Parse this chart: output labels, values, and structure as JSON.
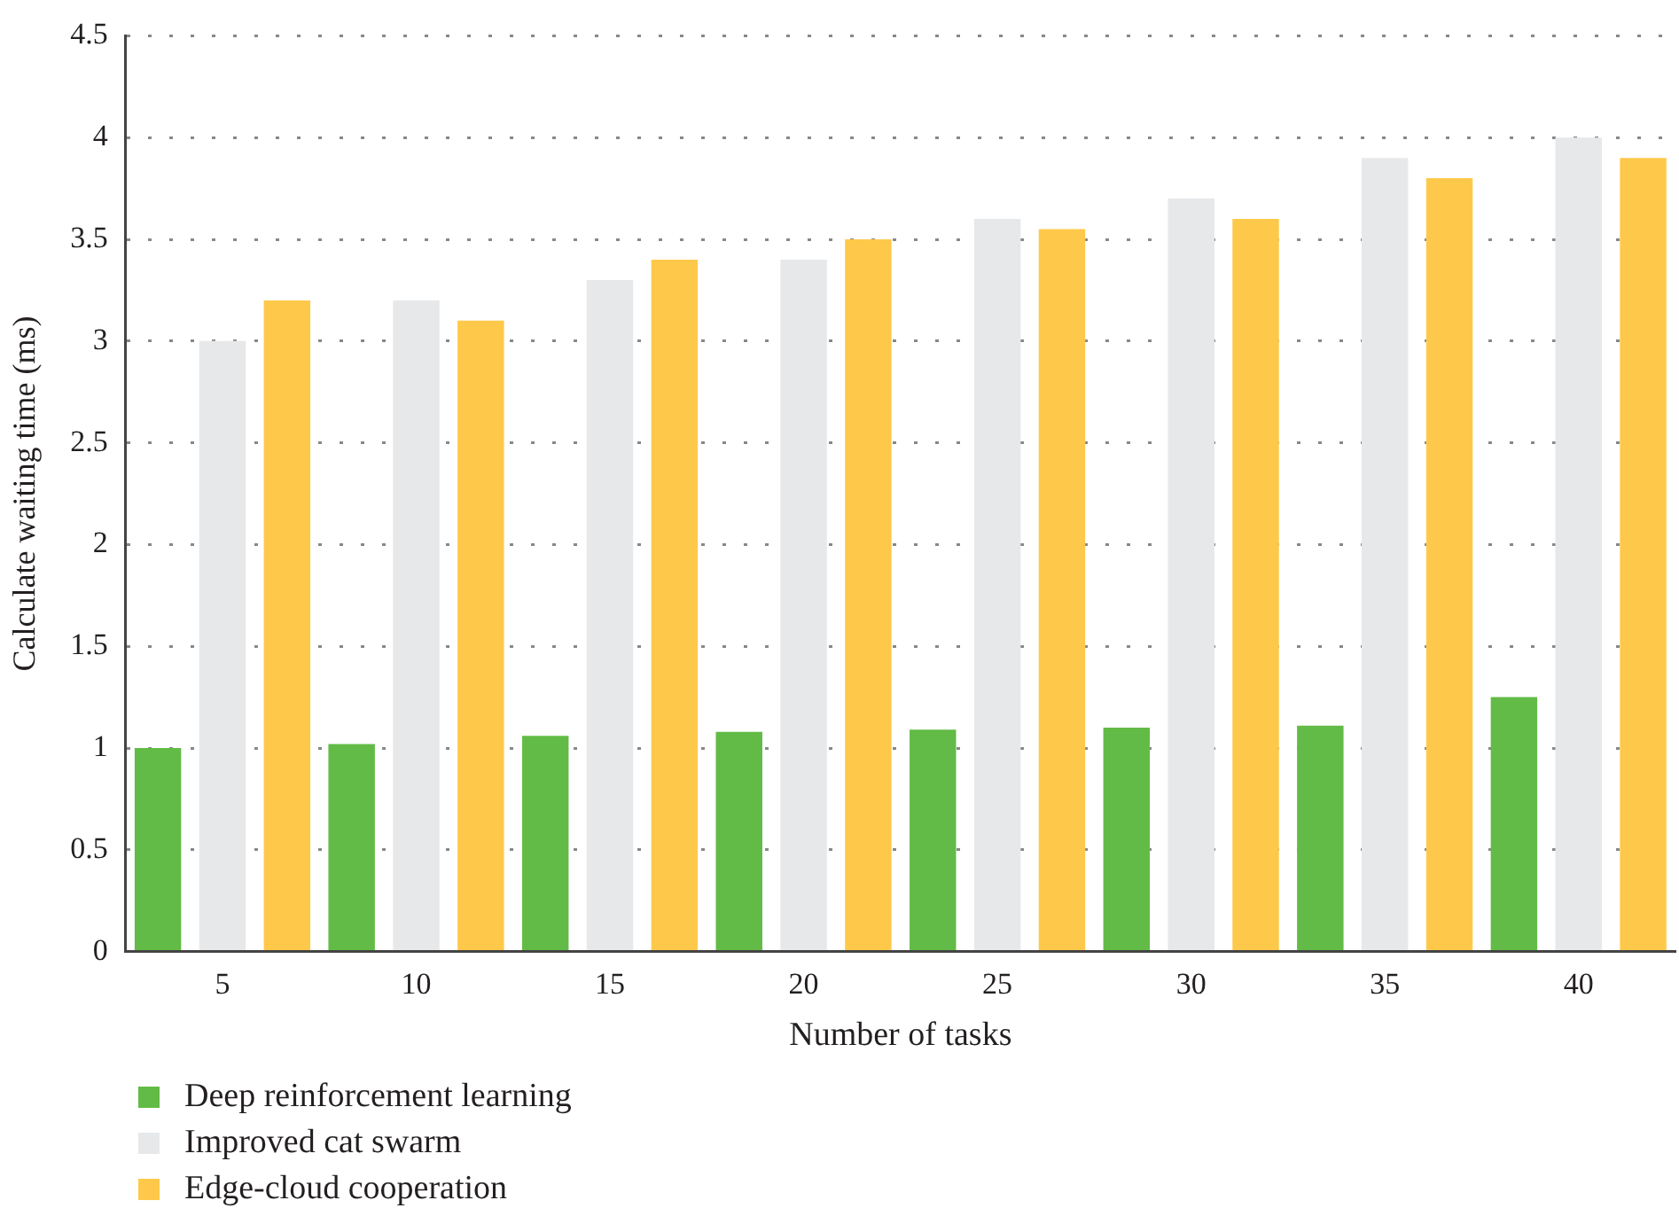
{
  "chart_data": {
    "type": "bar",
    "xlabel": "Number of tasks",
    "ylabel": "Calculate waiting time (ms)",
    "categories": [
      "5",
      "10",
      "15",
      "20",
      "25",
      "30",
      "35",
      "40"
    ],
    "series": [
      {
        "name": "Deep reinforcement learning",
        "color": "#62bb46",
        "values": [
          1.0,
          1.02,
          1.06,
          1.08,
          1.09,
          1.1,
          1.11,
          1.25
        ]
      },
      {
        "name": "Improved cat swarm",
        "color": "#e6e8ea",
        "values": [
          3.0,
          3.2,
          3.3,
          3.4,
          3.6,
          3.7,
          3.9,
          4.0
        ]
      },
      {
        "name": "Edge-cloud cooperation",
        "color": "#fec94a",
        "values": [
          3.2,
          3.1,
          3.4,
          3.5,
          3.55,
          3.6,
          3.8,
          3.9
        ]
      }
    ],
    "ylim": [
      0,
      4.5
    ],
    "yticks": [
      0,
      0.5,
      1,
      1.5,
      2,
      2.5,
      3,
      3.5,
      4,
      4.5
    ],
    "grid": "y",
    "legend": "bottom left"
  }
}
